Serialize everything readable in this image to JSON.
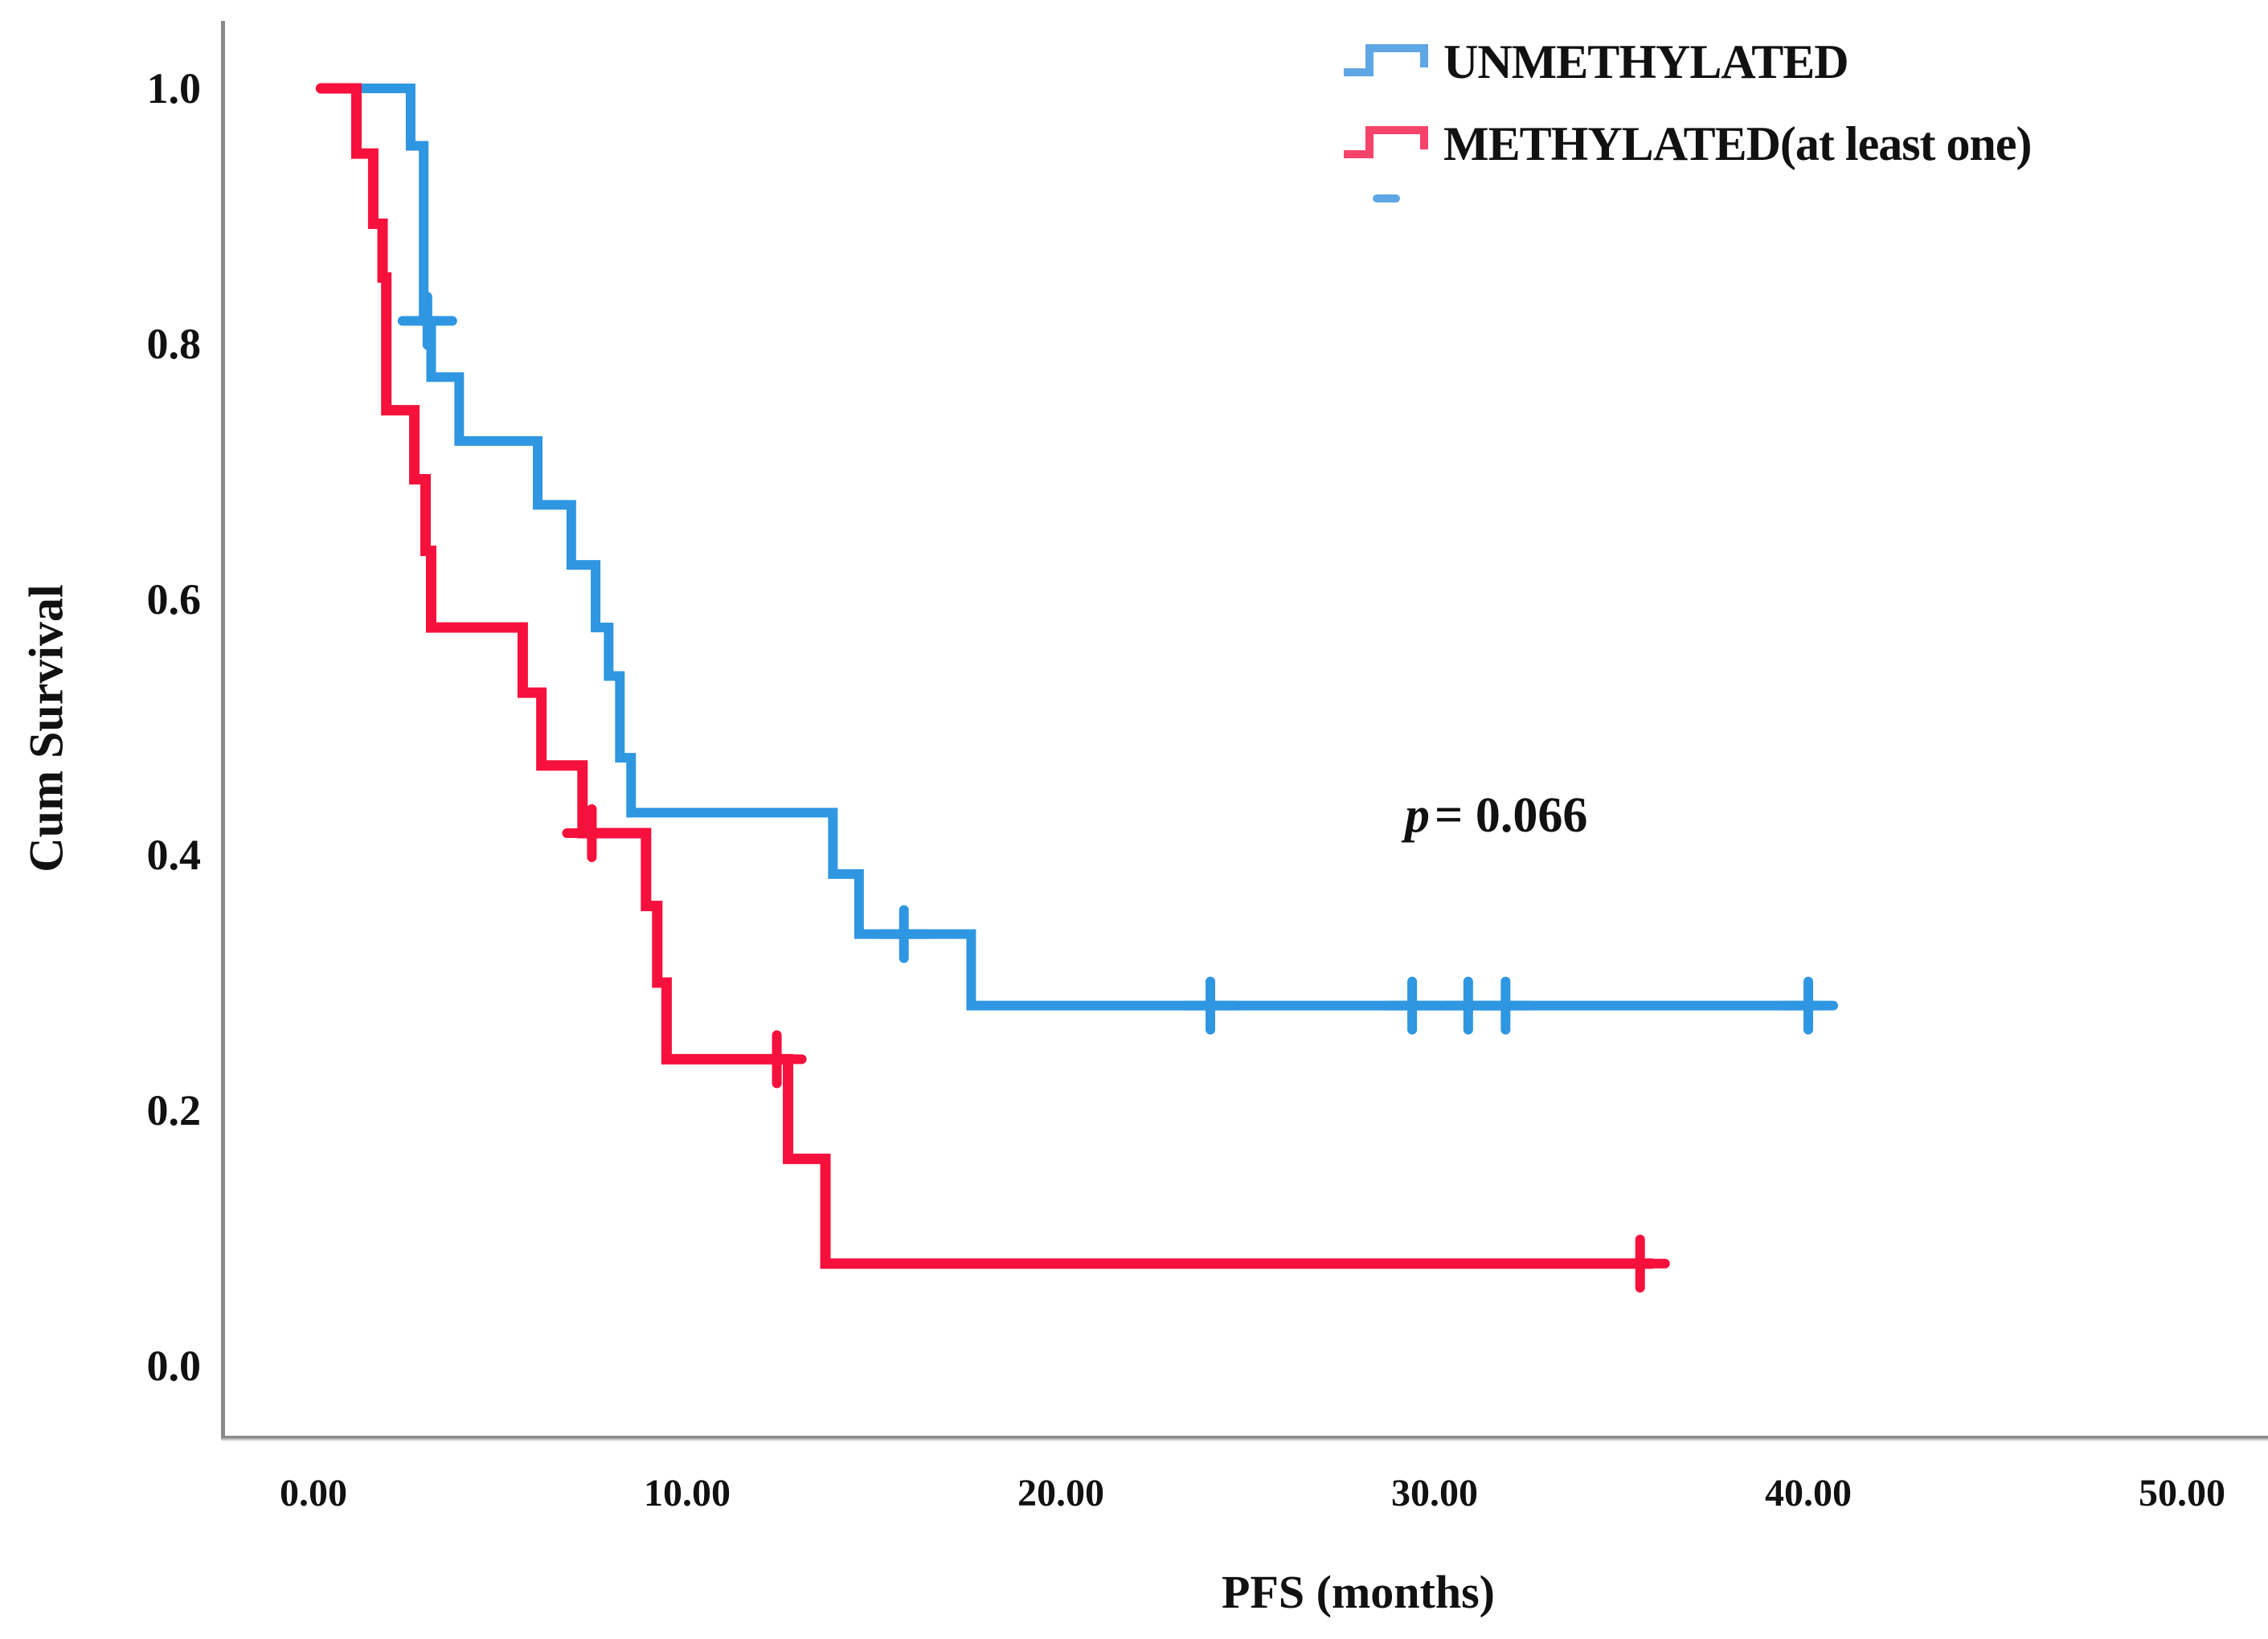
{
  "figure": {
    "y_axis": {
      "title": "Cum Survival",
      "tick_labels": [
        "1.0",
        "0.8",
        "0.6",
        "0.4",
        "0.2",
        "0.0"
      ],
      "tick_values": [
        1.0,
        0.8,
        0.6,
        0.4,
        0.2,
        0.0
      ]
    },
    "x_axis": {
      "title": "PFS (months)",
      "tick_labels": [
        "0.00",
        "10.00",
        "20.00",
        "30.00",
        "40.00",
        "50.00"
      ],
      "tick_values": [
        0,
        10,
        20,
        30,
        40,
        50
      ]
    },
    "legend": {
      "items": [
        {
          "label": "UNMETHYLATED",
          "swatch_color": "#5fa6e4"
        },
        {
          "label": "METHYLATED(at least one)",
          "swatch_color": "#f6436a"
        }
      ]
    },
    "annotation": {
      "p_symbol": "p",
      "p_rest": "= 0.066"
    }
  },
  "chart_data": {
    "type": "line",
    "subtype": "kaplan-meier-step",
    "title": "",
    "xlabel": "PFS (months)",
    "ylabel": "Cum Survival",
    "xlim": [
      -2.5,
      52.3
    ],
    "ylim": [
      -0.055,
      1.06
    ],
    "x_ticks": [
      0,
      10,
      20,
      30,
      40,
      50
    ],
    "y_ticks": [
      0.0,
      0.2,
      0.4,
      0.6,
      0.8,
      1.0
    ],
    "grid": false,
    "legend_position": "top-right",
    "annotation_text": "p = 0.066",
    "series": [
      {
        "name": "UNMETHYLATED",
        "color": "#2f96e2",
        "stroke_width": 12,
        "start": [
          0.2,
          1.0
        ],
        "steps": [
          [
            2.6,
            0.955
          ],
          [
            2.95,
            0.818
          ],
          [
            3.15,
            0.774
          ],
          [
            3.9,
            0.724
          ],
          [
            6.0,
            0.674
          ],
          [
            6.9,
            0.627
          ],
          [
            7.55,
            0.578
          ],
          [
            7.9,
            0.54
          ],
          [
            8.2,
            0.476
          ],
          [
            8.5,
            0.433
          ],
          [
            13.9,
            0.385
          ],
          [
            14.6,
            0.338
          ],
          [
            17.6,
            0.282
          ]
        ],
        "end_x": 40.3,
        "censored": [
          [
            3.05,
            0.818
          ],
          [
            15.8,
            0.338
          ],
          [
            24.0,
            0.282
          ],
          [
            29.4,
            0.282
          ],
          [
            30.9,
            0.282
          ],
          [
            31.9,
            0.282
          ],
          [
            40.0,
            0.282
          ]
        ]
      },
      {
        "name": "METHYLATED(at least one)",
        "color": "#f6103c",
        "stroke_width": 13,
        "start": [
          0.2,
          1.0
        ],
        "steps": [
          [
            1.15,
            0.949
          ],
          [
            1.6,
            0.894
          ],
          [
            1.85,
            0.852
          ],
          [
            1.95,
            0.748
          ],
          [
            2.7,
            0.694
          ],
          [
            3.0,
            0.638
          ],
          [
            3.15,
            0.578
          ],
          [
            5.6,
            0.527
          ],
          [
            6.1,
            0.47
          ],
          [
            7.2,
            0.417
          ],
          [
            8.9,
            0.36
          ],
          [
            9.2,
            0.3
          ],
          [
            9.45,
            0.24
          ],
          [
            12.7,
            0.162
          ],
          [
            13.7,
            0.08
          ]
        ],
        "end_x": 35.8,
        "censored": [
          [
            7.45,
            0.417
          ],
          [
            12.4,
            0.24
          ],
          [
            35.5,
            0.08
          ]
        ]
      }
    ]
  }
}
